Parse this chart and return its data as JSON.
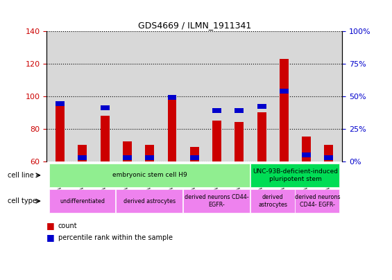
{
  "title": "GDS4669 / ILMN_1911341",
  "samples": [
    "GSM997555",
    "GSM997556",
    "GSM997557",
    "GSM997563",
    "GSM997564",
    "GSM997565",
    "GSM997566",
    "GSM997567",
    "GSM997568",
    "GSM997571",
    "GSM997572",
    "GSM997569",
    "GSM997570"
  ],
  "count_values": [
    94,
    70,
    88,
    72,
    70,
    100,
    69,
    85,
    84,
    90,
    123,
    75,
    70
  ],
  "percentile_values": [
    44,
    3,
    41,
    3,
    3,
    49,
    3,
    39,
    39,
    42,
    54,
    5,
    3
  ],
  "ylim_left": [
    60,
    140
  ],
  "ylim_right": [
    0,
    100
  ],
  "left_ticks": [
    60,
    80,
    100,
    120,
    140
  ],
  "right_ticks": [
    0,
    25,
    50,
    75,
    100
  ],
  "right_tick_labels": [
    "0%",
    "25%",
    "50%",
    "75%",
    "100%"
  ],
  "cell_line_groups": [
    {
      "label": "embryonic stem cell H9",
      "start": 0,
      "end": 9,
      "color": "#90EE90"
    },
    {
      "label": "UNC-93B-deficient-induced\npluripotent stem",
      "start": 9,
      "end": 13,
      "color": "#00DD55"
    }
  ],
  "cell_type_groups": [
    {
      "label": "undifferentiated",
      "start": 0,
      "end": 3,
      "color": "#EE82EE"
    },
    {
      "label": "derived astrocytes",
      "start": 3,
      "end": 6,
      "color": "#EE82EE"
    },
    {
      "label": "derived neurons CD44-\nEGFR-",
      "start": 6,
      "end": 9,
      "color": "#EE82EE"
    },
    {
      "label": "derived\nastrocytes",
      "start": 9,
      "end": 11,
      "color": "#EE82EE"
    },
    {
      "label": "derived neurons\nCD44- EGFR-",
      "start": 11,
      "end": 13,
      "color": "#EE82EE"
    }
  ],
  "bar_color": "#CC0000",
  "percentile_color": "#0000CC",
  "grid_color": "#000000",
  "background_color": "#ffffff",
  "tick_color_left": "#CC0000",
  "tick_color_right": "#0000CC",
  "plot_bg": "#D8D8D8",
  "bar_width": 0.4,
  "blue_bar_height": 3.0
}
